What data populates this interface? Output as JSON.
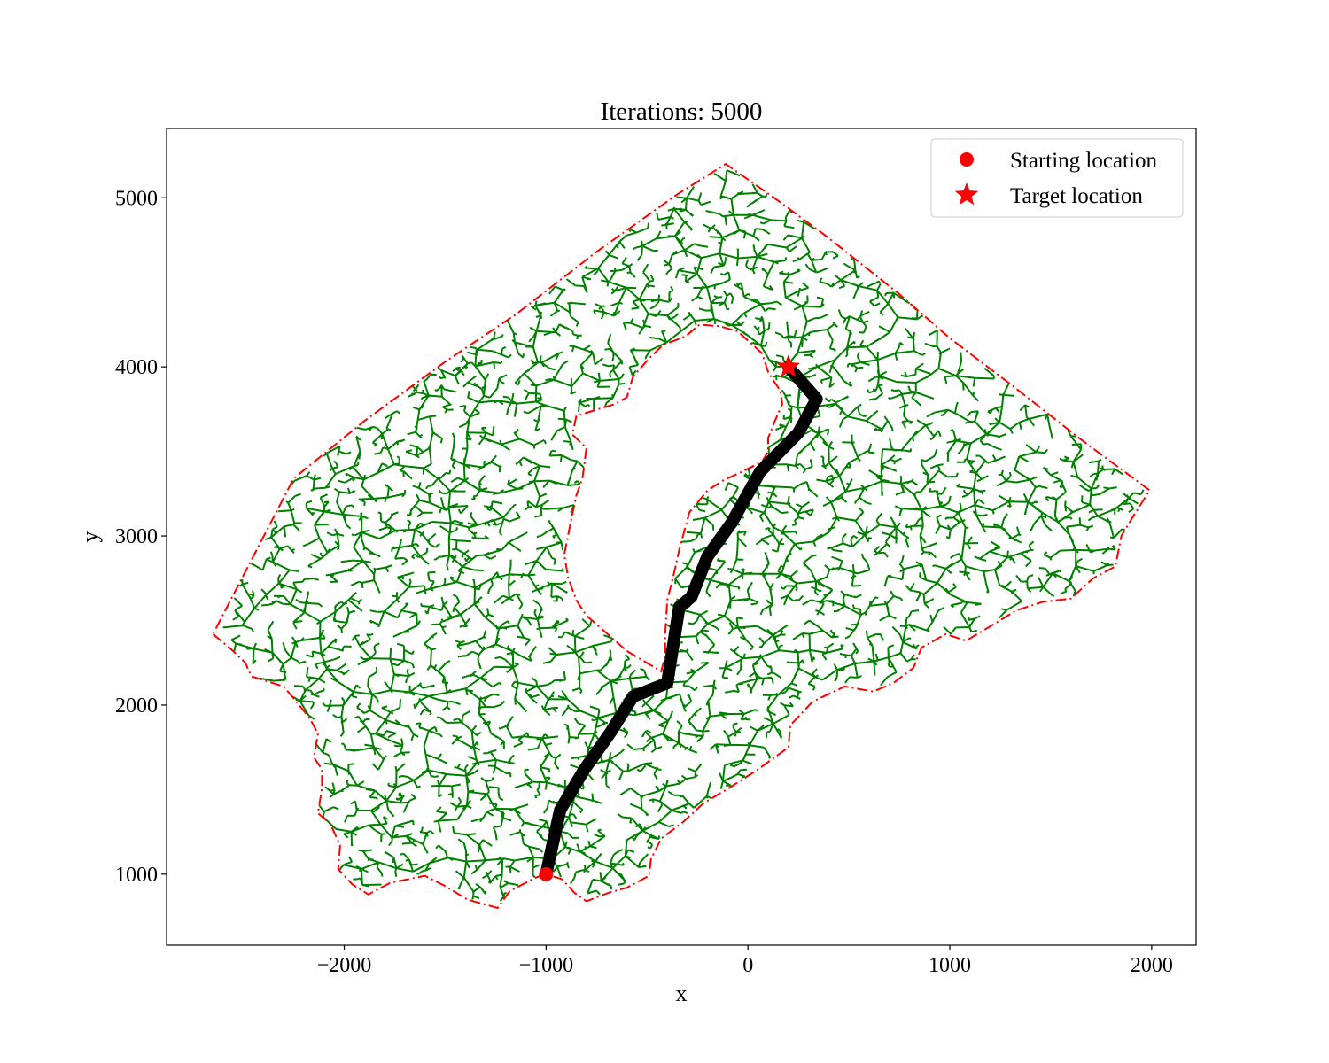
{
  "chart_data": {
    "type": "scatter",
    "title": "Iterations: 5000",
    "xlabel": "x",
    "ylabel": "y",
    "xlim": [
      -2880,
      2220
    ],
    "ylim": [
      580,
      5410
    ],
    "x_ticks": [
      -2000,
      -1000,
      0,
      1000,
      2000
    ],
    "x_tick_labels": [
      "−2000",
      "−1000",
      "0",
      "1000",
      "2000"
    ],
    "y_ticks": [
      1000,
      2000,
      3000,
      4000,
      5000
    ],
    "y_tick_labels": [
      "1000",
      "2000",
      "3000",
      "4000",
      "5000"
    ],
    "grid": false,
    "legend_position": "top-right",
    "legend": [
      {
        "label": "Starting location",
        "marker": "circle",
        "color": "#ff0000"
      },
      {
        "label": "Target location",
        "marker": "star",
        "color": "#ff0000"
      }
    ],
    "start": {
      "x": -1000,
      "y": 1000
    },
    "target": {
      "x": 200,
      "y": 4000
    },
    "tree_color": "#008000",
    "tree_nodes": 5000,
    "boundary_color": "#ff0000",
    "path_color": "#000000",
    "outer_boundary": [
      [
        -2650,
        2420
      ],
      [
        -2560,
        2330
      ],
      [
        -2490,
        2250
      ],
      [
        -2460,
        2170
      ],
      [
        -2300,
        2110
      ],
      [
        -2230,
        2010
      ],
      [
        -2170,
        1920
      ],
      [
        -2130,
        1830
      ],
      [
        -2150,
        1690
      ],
      [
        -2110,
        1620
      ],
      [
        -2110,
        1510
      ],
      [
        -2130,
        1360
      ],
      [
        -2070,
        1300
      ],
      [
        -2020,
        1170
      ],
      [
        -2030,
        1030
      ],
      [
        -1960,
        940
      ],
      [
        -1880,
        880
      ],
      [
        -1770,
        950
      ],
      [
        -1600,
        990
      ],
      [
        -1500,
        930
      ],
      [
        -1390,
        850
      ],
      [
        -1240,
        800
      ],
      [
        -1180,
        900
      ],
      [
        -1050,
        980
      ],
      [
        -1000,
        1000
      ],
      [
        -920,
        970
      ],
      [
        -860,
        890
      ],
      [
        -800,
        840
      ],
      [
        -690,
        890
      ],
      [
        -600,
        920
      ],
      [
        -490,
        990
      ],
      [
        -480,
        1090
      ],
      [
        -430,
        1210
      ],
      [
        -320,
        1310
      ],
      [
        -220,
        1420
      ],
      [
        -80,
        1520
      ],
      [
        50,
        1620
      ],
      [
        200,
        1750
      ],
      [
        210,
        1880
      ],
      [
        320,
        2020
      ],
      [
        480,
        2110
      ],
      [
        620,
        2080
      ],
      [
        720,
        2130
      ],
      [
        820,
        2220
      ],
      [
        860,
        2340
      ],
      [
        980,
        2420
      ],
      [
        1080,
        2380
      ],
      [
        1220,
        2480
      ],
      [
        1330,
        2560
      ],
      [
        1460,
        2610
      ],
      [
        1600,
        2630
      ],
      [
        1710,
        2750
      ],
      [
        1820,
        2820
      ],
      [
        1850,
        3000
      ],
      [
        1900,
        3100
      ],
      [
        1990,
        3270
      ],
      [
        1650,
        3570
      ],
      [
        1320,
        3880
      ],
      [
        1000,
        4170
      ],
      [
        740,
        4440
      ],
      [
        380,
        4780
      ],
      [
        130,
        5000
      ],
      [
        -110,
        5200
      ],
      [
        -350,
        5020
      ],
      [
        -750,
        4680
      ],
      [
        -1150,
        4310
      ],
      [
        -1500,
        4030
      ],
      [
        -1900,
        3680
      ],
      [
        -2250,
        3340
      ],
      [
        -2650,
        2420
      ]
    ],
    "obstacle_boundary": [
      [
        -600,
        2320
      ],
      [
        -430,
        2200
      ],
      [
        -410,
        2290
      ],
      [
        -410,
        2420
      ],
      [
        -400,
        2620
      ],
      [
        -370,
        2760
      ],
      [
        -340,
        2920
      ],
      [
        -290,
        3140
      ],
      [
        -200,
        3270
      ],
      [
        -120,
        3330
      ],
      [
        -30,
        3380
      ],
      [
        70,
        3440
      ],
      [
        100,
        3500
      ],
      [
        100,
        3580
      ],
      [
        130,
        3670
      ],
      [
        170,
        3780
      ],
      [
        160,
        3860
      ],
      [
        120,
        3930
      ],
      [
        100,
        3970
      ],
      [
        70,
        4080
      ],
      [
        -50,
        4210
      ],
      [
        -140,
        4240
      ],
      [
        -240,
        4250
      ],
      [
        -310,
        4180
      ],
      [
        -420,
        4130
      ],
      [
        -490,
        4050
      ],
      [
        -570,
        3940
      ],
      [
        -600,
        3820
      ],
      [
        -660,
        3780
      ],
      [
        -850,
        3710
      ],
      [
        -870,
        3600
      ],
      [
        -800,
        3520
      ],
      [
        -820,
        3340
      ],
      [
        -850,
        3240
      ],
      [
        -880,
        3070
      ],
      [
        -910,
        2890
      ],
      [
        -890,
        2750
      ],
      [
        -850,
        2620
      ],
      [
        -800,
        2530
      ],
      [
        -600,
        2320
      ]
    ],
    "path": [
      [
        -1000,
        1000
      ],
      [
        -930,
        1380
      ],
      [
        -810,
        1620
      ],
      [
        -680,
        1840
      ],
      [
        -570,
        2050
      ],
      [
        -400,
        2130
      ],
      [
        -340,
        2580
      ],
      [
        -280,
        2640
      ],
      [
        -200,
        2880
      ],
      [
        -80,
        3080
      ],
      [
        60,
        3380
      ],
      [
        250,
        3610
      ],
      [
        340,
        3810
      ],
      [
        200,
        4000
      ]
    ]
  }
}
